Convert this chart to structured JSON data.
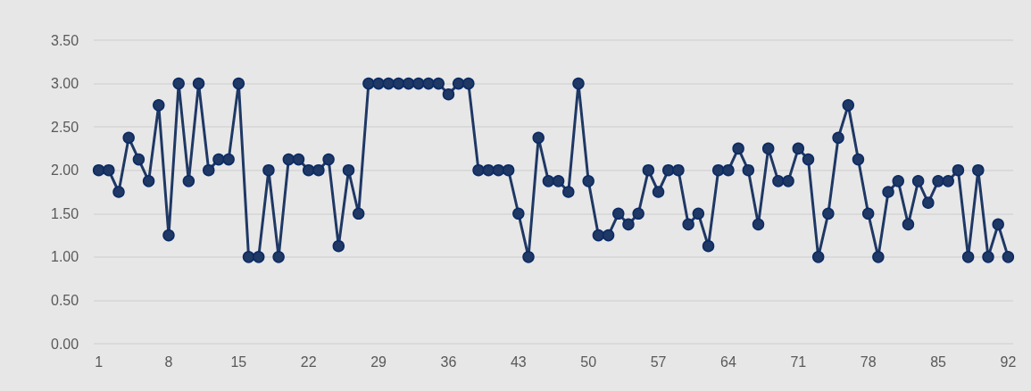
{
  "chart_data": {
    "type": "line",
    "categories": [
      "1",
      null,
      null,
      null,
      null,
      null,
      null,
      "8",
      null,
      null,
      null,
      null,
      null,
      null,
      "15",
      null,
      null,
      null,
      null,
      null,
      null,
      "22",
      null,
      null,
      null,
      null,
      null,
      null,
      "29",
      null,
      null,
      null,
      null,
      null,
      null,
      "36",
      null,
      null,
      null,
      null,
      null,
      null,
      "43",
      null,
      null,
      null,
      null,
      null,
      null,
      "50",
      null,
      null,
      null,
      null,
      null,
      null,
      "57",
      null,
      null,
      null,
      null,
      null,
      null,
      "64",
      null,
      null,
      null,
      null,
      null,
      null,
      "71",
      null,
      null,
      null,
      null,
      null,
      null,
      "78",
      null,
      null,
      null,
      null,
      null,
      null,
      "85",
      null,
      null,
      null,
      null,
      null,
      null,
      "92"
    ],
    "series": [
      {
        "color": "#1f3864",
        "values": [
          2,
          2,
          1.75,
          2.375,
          2.125,
          1.875,
          2.75,
          1.25,
          3,
          1.875,
          3,
          2,
          2.125,
          2.125,
          3,
          1,
          1,
          2,
          1,
          2.125,
          2.125,
          2,
          2,
          2.125,
          1.125,
          2,
          1.5,
          3,
          3,
          3,
          3,
          3,
          3,
          3,
          3,
          2.875,
          3,
          3,
          2,
          2,
          2,
          2,
          1.5,
          1,
          2.375,
          1.875,
          1.875,
          1.75,
          3,
          1.875,
          1.25,
          1.25,
          1.5,
          1.375,
          1.5,
          2,
          1.75,
          2,
          2,
          1.375,
          1.5,
          1.125,
          2,
          2,
          2.25,
          2,
          1.375,
          2.25,
          1.875,
          1.875,
          2.25,
          2.125,
          1,
          1.5,
          2.375,
          2.75,
          2.125,
          1.5,
          1,
          1.75,
          1.875,
          1.375,
          1.875,
          1.625,
          1.875,
          1.875,
          2,
          1,
          2,
          1,
          1.375,
          1
        ]
      }
    ],
    "ylim": [
      0,
      3.5
    ],
    "yticks": [
      {
        "value": 0,
        "label": "0.00"
      },
      {
        "value": 0.5,
        "label": "0.50"
      },
      {
        "value": 1,
        "label": "1.00"
      },
      {
        "value": 1.5,
        "label": "1.50"
      },
      {
        "value": 2,
        "label": "2.00"
      },
      {
        "value": 2.5,
        "label": "2.50"
      },
      {
        "value": 3,
        "label": "3.00"
      },
      {
        "value": 3.5,
        "label": "3.50"
      }
    ],
    "grid": "y",
    "marker": "circle",
    "line_style": "solid"
  }
}
